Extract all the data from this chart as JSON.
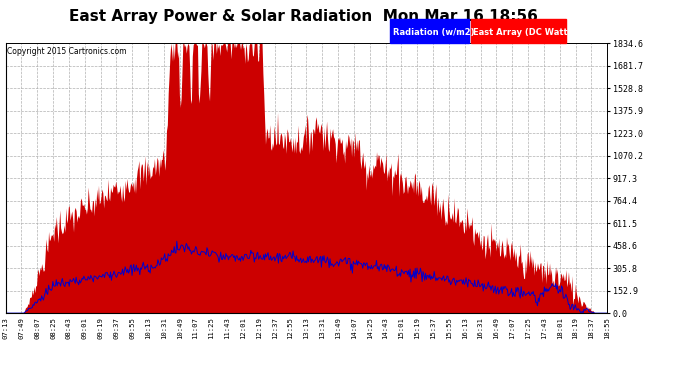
{
  "title": "East Array Power & Solar Radiation  Mon Mar 16 18:56",
  "copyright": "Copyright 2015 Cartronics.com",
  "legend_labels": [
    "Radiation (w/m2)",
    "East Array (DC Watts)"
  ],
  "ymin": 0.0,
  "ymax": 1834.6,
  "yticks": [
    0.0,
    152.9,
    305.8,
    458.6,
    611.5,
    764.4,
    917.3,
    1070.2,
    1223.0,
    1375.9,
    1528.8,
    1681.7,
    1834.6
  ],
  "bg_color": "#ffffff",
  "fill_color_red": "#cc0000",
  "line_color_blue": "#0000cc",
  "grid_color": "#b0b0b0",
  "title_fontsize": 11,
  "tick_fontsize": 6,
  "x_tick_labels": [
    "07:13",
    "07:49",
    "08:07",
    "08:25",
    "08:43",
    "09:01",
    "09:19",
    "09:37",
    "09:55",
    "10:13",
    "10:31",
    "10:49",
    "11:07",
    "11:25",
    "11:43",
    "12:01",
    "12:19",
    "12:37",
    "12:55",
    "13:13",
    "13:31",
    "13:49",
    "14:07",
    "14:25",
    "14:43",
    "15:01",
    "15:19",
    "15:37",
    "15:55",
    "16:13",
    "16:31",
    "16:49",
    "17:07",
    "17:25",
    "17:43",
    "18:01",
    "18:19",
    "18:37",
    "18:55"
  ]
}
